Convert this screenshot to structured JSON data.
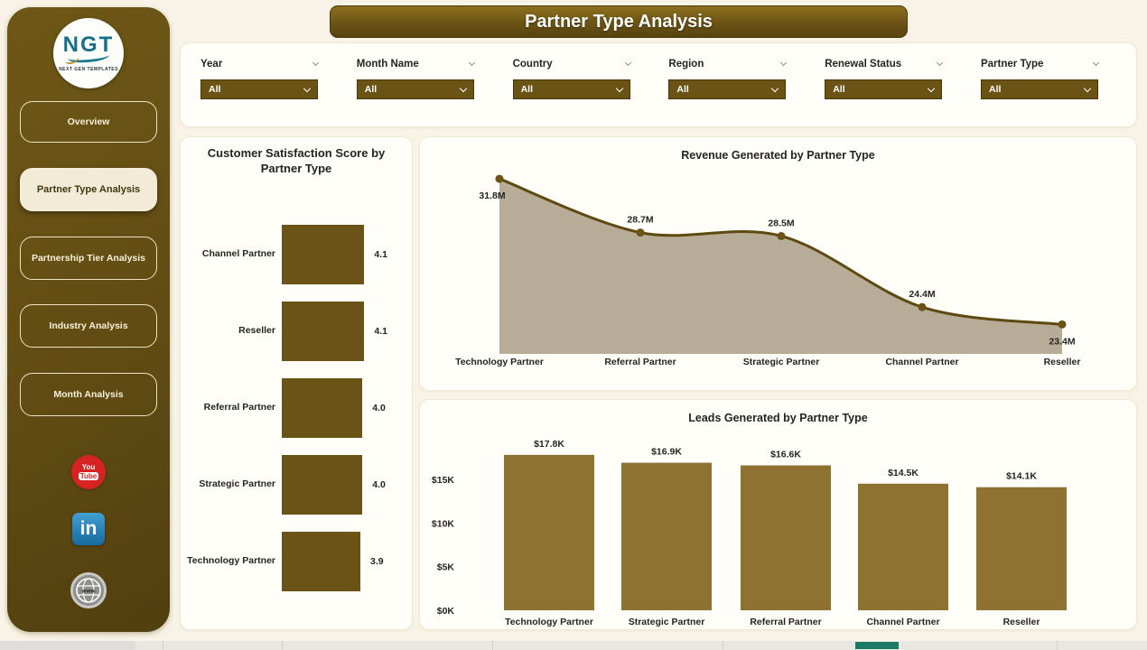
{
  "page": {
    "title": "Partner Type Analysis"
  },
  "sidebar": {
    "logo": {
      "text": "NGT",
      "subtext": "NEXT GEN TEMPLATES"
    },
    "nav": [
      {
        "label": "Overview",
        "active": false
      },
      {
        "label": "Partner Type Analysis",
        "active": true
      },
      {
        "label": "Partnership Tier Analysis",
        "active": false
      },
      {
        "label": "Industry Analysis",
        "active": false
      },
      {
        "label": "Month Analysis",
        "active": false
      }
    ],
    "social": {
      "youtube_top": "You",
      "youtube_bottom": "Tube",
      "linkedin": "in",
      "website": "www"
    }
  },
  "filters": {
    "items": [
      {
        "label": "Year",
        "value": "All"
      },
      {
        "label": "Month Name",
        "value": "All"
      },
      {
        "label": "Country",
        "value": "All"
      },
      {
        "label": "Region",
        "value": "All"
      },
      {
        "label": "Renewal Status",
        "value": "All"
      },
      {
        "label": "Partner Type",
        "value": "All"
      }
    ]
  },
  "chart_data": [
    {
      "type": "bar",
      "orientation": "horizontal",
      "title": "Customer Satisfaction Score by Partner Type",
      "categories": [
        "Channel Partner",
        "Reseller",
        "Referral Partner",
        "Strategic Partner",
        "Technology Partner"
      ],
      "values": [
        4.1,
        4.1,
        4.0,
        4.0,
        3.9
      ],
      "value_labels": [
        "4.1",
        "4.1",
        "4.0",
        "4.0",
        "3.9"
      ],
      "xlim": [
        0,
        4.5
      ],
      "grid": false,
      "bar_color": "#6b5318"
    },
    {
      "type": "area",
      "title": "Revenue Generated by Partner Type",
      "categories": [
        "Technology Partner",
        "Referral Partner",
        "Strategic Partner",
        "Channel Partner",
        "Reseller"
      ],
      "values": [
        31.8,
        28.7,
        28.5,
        24.4,
        23.4
      ],
      "value_labels": [
        "31.8M",
        "28.7M",
        "28.5M",
        "24.4M",
        "23.4M"
      ],
      "label_placement": [
        "below",
        "above",
        "above",
        "above",
        "below"
      ],
      "unit": "M",
      "ylim": [
        21.7,
        33.5
      ],
      "grid": false,
      "line_color": "#5e4a10",
      "fill_color": "#b7ac97",
      "marker_color": "#6b5316"
    },
    {
      "type": "bar",
      "orientation": "vertical",
      "title": "Leads Generated by Partner Type",
      "categories": [
        "Technology Partner",
        "Strategic Partner",
        "Referral Partner",
        "Channel Partner",
        "Reseller"
      ],
      "values": [
        17.8,
        16.9,
        16.6,
        14.5,
        14.1
      ],
      "value_labels": [
        "$17.8K",
        "$16.9K",
        "$16.6K",
        "$14.5K",
        "$14.1K"
      ],
      "y_ticks": [
        {
          "label": "$0K",
          "value": 0
        },
        {
          "label": "$5K",
          "value": 5
        },
        {
          "label": "$10K",
          "value": 10
        },
        {
          "label": "$15K",
          "value": 15
        }
      ],
      "ylim": [
        0,
        18.5
      ],
      "grid": false,
      "bar_color": "#8d7232"
    }
  ],
  "colors": {
    "accent_gold_dark": "#6b5316",
    "accent_gold_light": "#8d7232",
    "area_fill": "#b7ac97",
    "sidebar": "#614c13",
    "background": "#f8f3e6",
    "card": "#fffef8",
    "scroll_indicator_teal": "#1b7a66",
    "youtube_red": "#d62423",
    "linkedin_blue": "#176a9e"
  }
}
